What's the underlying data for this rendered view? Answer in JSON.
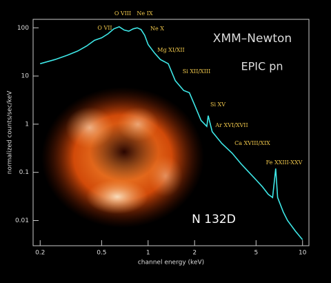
{
  "chart_data": {
    "type": "line",
    "title": "XMM–Newton",
    "subtitle": "EPIC pn",
    "object": "N 132D",
    "x_label": "channel energy (keV)",
    "y_label": "normalized counts/sec/keV",
    "log_x": true,
    "log_y": true,
    "color": "#3ee8e8",
    "x": [
      0.2,
      0.25,
      0.3,
      0.35,
      0.4,
      0.45,
      0.5,
      0.55,
      0.6,
      0.65,
      0.7,
      0.75,
      0.8,
      0.85,
      0.9,
      0.95,
      1.0,
      1.1,
      1.2,
      1.35,
      1.5,
      1.7,
      1.85,
      2.0,
      2.2,
      2.4,
      2.45,
      2.6,
      3.0,
      3.5,
      4.0,
      4.5,
      5.0,
      5.5,
      6.0,
      6.4,
      6.7,
      6.9,
      7.5,
      8.0,
      9.0,
      10.0
    ],
    "values": [
      18,
      22,
      27,
      33,
      42,
      55,
      62,
      75,
      95,
      105,
      90,
      85,
      95,
      100,
      92,
      70,
      45,
      30,
      22,
      18,
      8,
      5,
      4.5,
      2.5,
      1.2,
      0.9,
      1.5,
      0.7,
      0.4,
      0.25,
      0.15,
      0.1,
      0.07,
      0.05,
      0.035,
      0.03,
      0.12,
      0.03,
      0.015,
      0.01,
      0.006,
      0.004
    ],
    "xlim": [
      0.18,
      11
    ],
    "ylim": [
      0.003,
      150
    ],
    "xticks": [
      0.2,
      0.5,
      1,
      2,
      5,
      10
    ],
    "yticks": [
      0.01,
      0.1,
      1,
      10,
      100
    ],
    "annotations": [
      "O VII",
      "O VIII",
      "Ne IX",
      "Ne X",
      "Mg XI/XII",
      "Si XII/XIII",
      "Si XV",
      "Ar XVI/XVII",
      "Ca XVIII/XIX",
      "Fe XXIII-XXV"
    ]
  }
}
